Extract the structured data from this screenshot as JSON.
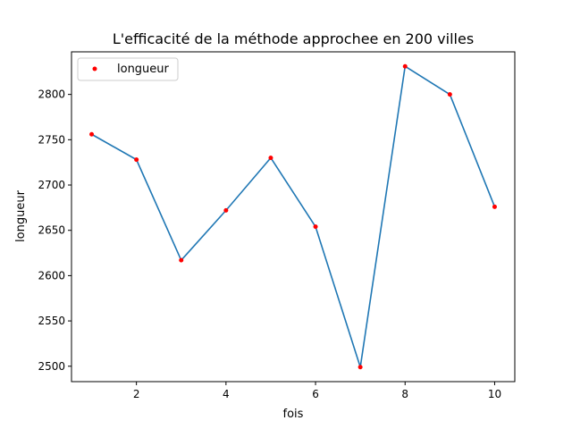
{
  "chart_data": {
    "type": "line",
    "title": "L'efficacité de la méthode approchee en 200 villes",
    "xlabel": "fois",
    "ylabel": "longueur",
    "x": [
      1,
      2,
      3,
      4,
      5,
      6,
      7,
      8,
      9,
      10
    ],
    "series": [
      {
        "name": "longueur",
        "values": [
          2756,
          2728,
          2617,
          2672,
          2730,
          2654,
          2499,
          2831,
          2800,
          2676
        ],
        "line_color": "#1f77b4",
        "marker_color": "#ff0000"
      }
    ],
    "xlim": [
      0.55,
      10.45
    ],
    "ylim": [
      2483,
      2847
    ],
    "xticks": [
      2,
      4,
      6,
      8,
      10
    ],
    "yticks": [
      2500,
      2550,
      2600,
      2650,
      2700,
      2750,
      2800
    ],
    "grid": false,
    "legend_position": "top-left"
  }
}
